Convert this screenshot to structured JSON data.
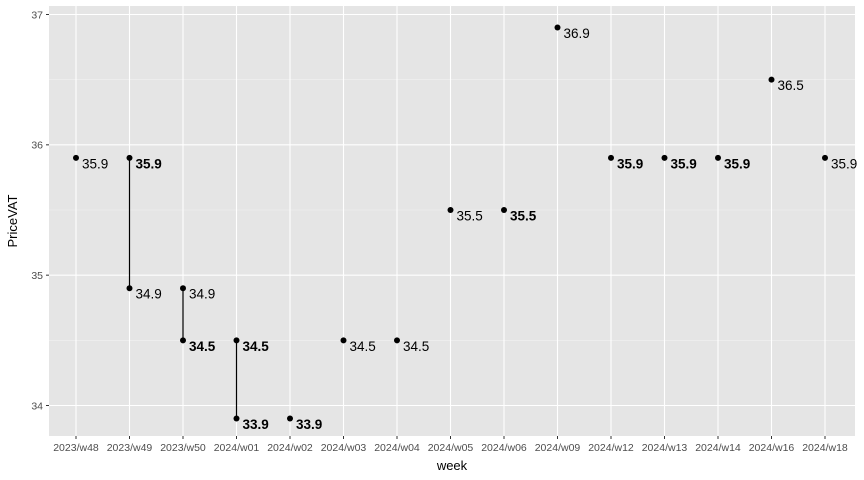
{
  "chart_data": {
    "type": "scatter",
    "title": "",
    "xlabel": "week",
    "ylabel": "PriceVAT",
    "ylim": [
      33.8,
      37.05
    ],
    "yticks": [
      34,
      35,
      36,
      37
    ],
    "ytick_labels": [
      "34",
      "35",
      "36",
      "37"
    ],
    "categories": [
      "2023/w48",
      "2023/w49",
      "2023/w50",
      "2024/w01",
      "2024/w02",
      "2024/w03",
      "2024/w04",
      "2024/w05",
      "2024/w06",
      "2024/w09",
      "2024/w12",
      "2024/w13",
      "2024/w14",
      "2024/w16",
      "2024/w18"
    ],
    "grid": true,
    "points": [
      {
        "week": "2023/w48",
        "value": 35.9,
        "label": "35.9",
        "bold": false
      },
      {
        "week": "2023/w49",
        "value": 35.9,
        "label": "35.9",
        "bold": true
      },
      {
        "week": "2023/w49",
        "value": 34.9,
        "label": "34.9",
        "bold": false
      },
      {
        "week": "2023/w50",
        "value": 34.9,
        "label": "34.9",
        "bold": false
      },
      {
        "week": "2023/w50",
        "value": 34.5,
        "label": "34.5",
        "bold": true
      },
      {
        "week": "2024/w01",
        "value": 34.5,
        "label": "34.5",
        "bold": true
      },
      {
        "week": "2024/w01",
        "value": 33.9,
        "label": "33.9",
        "bold": true
      },
      {
        "week": "2024/w02",
        "value": 33.9,
        "label": "33.9",
        "bold": true
      },
      {
        "week": "2024/w03",
        "value": 34.5,
        "label": "34.5",
        "bold": false
      },
      {
        "week": "2024/w04",
        "value": 34.5,
        "label": "34.5",
        "bold": false
      },
      {
        "week": "2024/w05",
        "value": 35.5,
        "label": "35.5",
        "bold": false
      },
      {
        "week": "2024/w06",
        "value": 35.5,
        "label": "35.5",
        "bold": true
      },
      {
        "week": "2024/w09",
        "value": 36.9,
        "label": "36.9",
        "bold": false
      },
      {
        "week": "2024/w12",
        "value": 35.9,
        "label": "35.9",
        "bold": true
      },
      {
        "week": "2024/w13",
        "value": 35.9,
        "label": "35.9",
        "bold": true
      },
      {
        "week": "2024/w14",
        "value": 35.9,
        "label": "35.9",
        "bold": true
      },
      {
        "week": "2024/w16",
        "value": 36.5,
        "label": "36.5",
        "bold": false
      },
      {
        "week": "2024/w18",
        "value": 35.9,
        "label": "35.9",
        "bold": false
      }
    ],
    "ranges": [
      {
        "week": "2023/w49",
        "low": 34.9,
        "high": 35.9
      },
      {
        "week": "2023/w50",
        "low": 34.5,
        "high": 34.9
      },
      {
        "week": "2024/w01",
        "low": 33.9,
        "high": 34.5
      }
    ]
  }
}
